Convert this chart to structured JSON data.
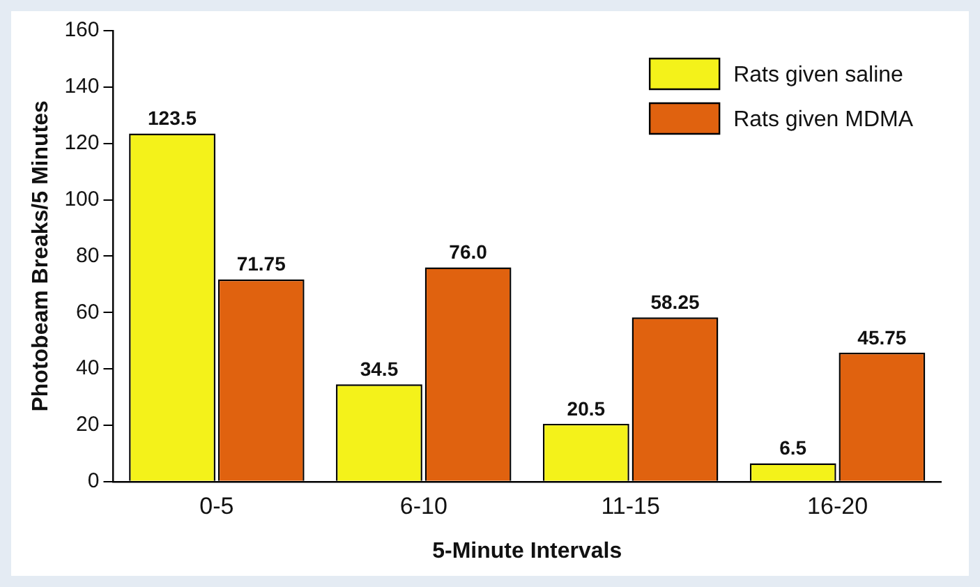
{
  "chart_data": {
    "type": "bar",
    "xlabel": "5-Minute Intervals",
    "ylabel": "Photobeam Breaks/5 Minutes",
    "categories": [
      "0-5",
      "6-10",
      "11-15",
      "16-20"
    ],
    "series": [
      {
        "name": "Rats given saline",
        "color": "#f4f21a",
        "values": [
          123.5,
          34.5,
          20.5,
          6.5
        ],
        "value_labels": [
          "123.5",
          "34.5",
          "20.5",
          "6.5"
        ]
      },
      {
        "name": "Rats given MDMA",
        "color": "#e0620f",
        "values": [
          71.75,
          76.0,
          58.25,
          45.75
        ],
        "value_labels": [
          "71.75",
          "76.0",
          "58.25",
          "45.75"
        ]
      }
    ],
    "ylim": [
      0,
      160
    ],
    "yticks": [
      0,
      20,
      40,
      60,
      80,
      100,
      120,
      140,
      160
    ],
    "grid": false,
    "legend": "top right"
  }
}
